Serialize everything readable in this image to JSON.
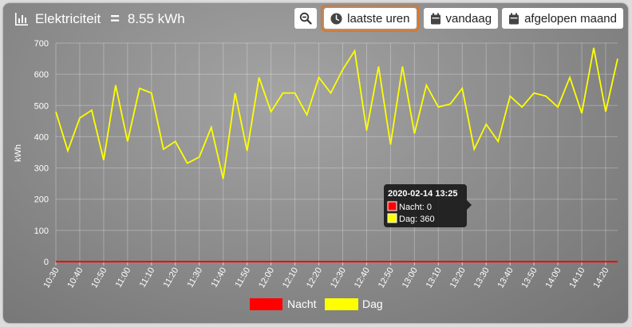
{
  "header": {
    "title": "Elektriciteit",
    "total": "8.55 kWh",
    "equals_sign": "="
  },
  "toolbar": {
    "zoom_icon": "zoom-out-icon",
    "recent_label": "laatste uren",
    "today_label": "vandaag",
    "month_label": "afgelopen maand"
  },
  "tooltip": {
    "title": "2020-02-14 13:25",
    "line1": "Nacht: 0",
    "line2": "Dag: 360"
  },
  "colors": {
    "nacht": "#ff0000",
    "dag": "#ffff00",
    "accent": "#e8741a"
  },
  "chart_data": {
    "type": "line",
    "ylabel": "kWh",
    "ylim": [
      0,
      700
    ],
    "yticks": [
      0,
      100,
      200,
      300,
      400,
      500,
      600,
      700
    ],
    "xlim": [
      "10:30",
      "14:25"
    ],
    "xticks": [
      "10:30",
      "10:40",
      "10:50",
      "11:00",
      "11:10",
      "11:20",
      "11:30",
      "11:40",
      "11:50",
      "12:00",
      "12:10",
      "12:20",
      "12:30",
      "12:40",
      "12:50",
      "13:00",
      "13:10",
      "13:20",
      "13:30",
      "13:40",
      "13:50",
      "14:00",
      "14:10",
      "14:20"
    ],
    "grid": true,
    "legend": "bottom",
    "x": [
      "10:30",
      "10:35",
      "10:40",
      "10:45",
      "10:50",
      "10:55",
      "11:00",
      "11:05",
      "11:10",
      "11:15",
      "11:20",
      "11:25",
      "11:30",
      "11:35",
      "11:40",
      "11:45",
      "11:50",
      "11:55",
      "12:00",
      "12:05",
      "12:10",
      "12:15",
      "12:20",
      "12:25",
      "12:30",
      "12:35",
      "12:40",
      "12:45",
      "12:50",
      "12:55",
      "13:00",
      "13:05",
      "13:10",
      "13:15",
      "13:20",
      "13:25",
      "13:30",
      "13:35",
      "13:40",
      "13:45",
      "13:50",
      "13:55",
      "14:00",
      "14:05",
      "14:10",
      "14:15",
      "14:20",
      "14:25"
    ],
    "series": [
      {
        "name": "Nacht",
        "color": "#ff0000",
        "values": [
          0,
          0,
          0,
          0,
          0,
          0,
          0,
          0,
          0,
          0,
          0,
          0,
          0,
          0,
          0,
          0,
          0,
          0,
          0,
          0,
          0,
          0,
          0,
          0,
          0,
          0,
          0,
          0,
          0,
          0,
          0,
          0,
          0,
          0,
          0,
          0,
          0,
          0,
          0,
          0,
          0,
          0,
          0,
          0,
          0,
          0,
          0,
          0
        ]
      },
      {
        "name": "Dag",
        "color": "#ffff00",
        "values": [
          480,
          355,
          460,
          485,
          325,
          565,
          385,
          555,
          540,
          360,
          385,
          315,
          335,
          430,
          265,
          540,
          355,
          590,
          480,
          540,
          540,
          470,
          590,
          540,
          615,
          675,
          420,
          625,
          375,
          625,
          410,
          565,
          495,
          505,
          555,
          360,
          440,
          385,
          530,
          495,
          540,
          530,
          495,
          590,
          475,
          685,
          480,
          650
        ]
      }
    ]
  }
}
